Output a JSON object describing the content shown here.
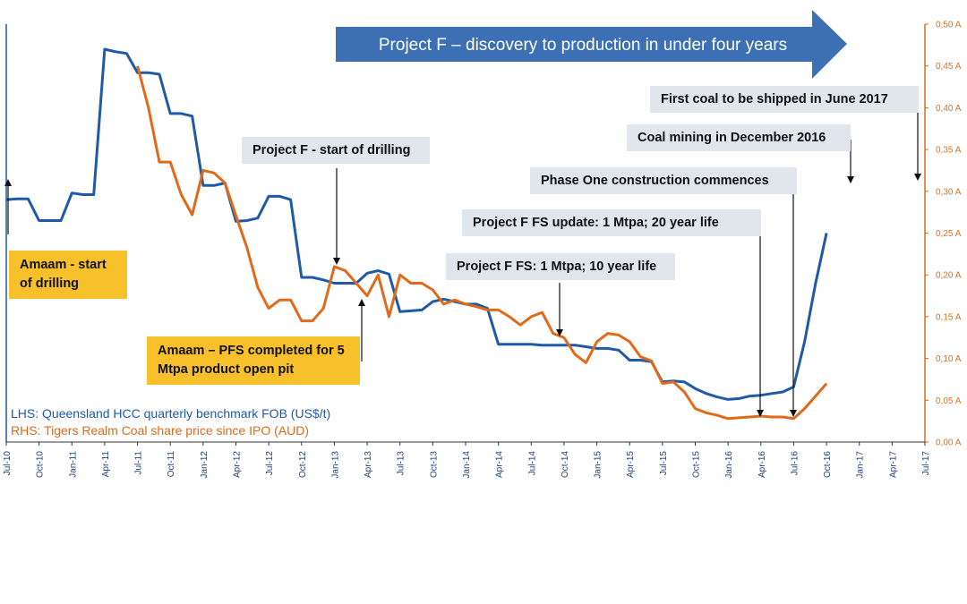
{
  "banner": {
    "text": "Project F – discovery to production in under four years"
  },
  "annotations": {
    "first_coal": "First coal to be shipped in June 2017",
    "coal_mining": "Coal mining in December 2016",
    "phase_one": "Phase One construction commences",
    "fs_update": "Project F FS update: 1 Mtpa; 20 year life",
    "fs": "Project F FS: 1 Mtpa; 10 year life",
    "start_drilling_f": "Project F - start of drilling",
    "amaam_drilling": "Amaam -  start of drilling",
    "amaam_pfs": "Amaam – PFS completed for 5 Mtpa product open pit"
  },
  "legend": {
    "lhs": "LHS: Queensland HCC quarterly benchmark FOB (US$/t)",
    "rhs": "RHS: Tigers Realm Coal share price since IPO (AUD)"
  },
  "colors": {
    "lhs": "#1f5aa6",
    "rhs": "#e06a1a",
    "banner": "#3d6fb4",
    "grey_box": "#e1e6ec",
    "yellow_box": "#f8c02a"
  },
  "chart_data": {
    "type": "line",
    "x_tick_labels": [
      "Jul-10",
      "Oct-10",
      "Jan-11",
      "Apr-11",
      "Jul-11",
      "Oct-11",
      "Jan-12",
      "Apr-12",
      "Jul-12",
      "Oct-12",
      "Jan-13",
      "Apr-13",
      "Jul-13",
      "Oct-13",
      "Jan-14",
      "Apr-14",
      "Jul-14",
      "Oct-14",
      "Jan-15",
      "Apr-15",
      "Jul-15",
      "Oct-15",
      "Jan-16",
      "Apr-16",
      "Jul-16",
      "Oct-16",
      "Jan-17",
      "Apr-17",
      "Jul-17"
    ],
    "y_right_tick_labels": [
      "0,00 A",
      "0,05 A",
      "0,10 A",
      "0,15 A",
      "0,20 A",
      "0,25 A",
      "0,30 A",
      "0,35 A",
      "0,40 A",
      "0,45 A",
      "0,50 A"
    ],
    "y_right_range": [
      0,
      0.5
    ],
    "series": [
      {
        "name": "LHS: Queensland HCC quarterly benchmark FOB (US$/t)",
        "axis": "left",
        "points": [
          [
            "Jul-10",
            0.29
          ],
          [
            "Aug-10",
            0.291
          ],
          [
            "Sep-10",
            0.291
          ],
          [
            "Oct-10",
            0.265
          ],
          [
            "Nov-10",
            0.265
          ],
          [
            "Dec-10",
            0.265
          ],
          [
            "Jan-11",
            0.298
          ],
          [
            "Feb-11",
            0.296
          ],
          [
            "Mar-11",
            0.296
          ],
          [
            "Apr-11",
            0.47
          ],
          [
            "May-11",
            0.467
          ],
          [
            "Jun-11",
            0.465
          ],
          [
            "Jul-11",
            0.442
          ],
          [
            "Aug-11",
            0.442
          ],
          [
            "Sep-11",
            0.44
          ],
          [
            "Oct-11",
            0.393
          ],
          [
            "Nov-11",
            0.393
          ],
          [
            "Dec-11",
            0.39
          ],
          [
            "Jan-12",
            0.307
          ],
          [
            "Feb-12",
            0.307
          ],
          [
            "Mar-12",
            0.31
          ],
          [
            "Apr-12",
            0.264
          ],
          [
            "May-12",
            0.265
          ],
          [
            "Jun-12",
            0.268
          ],
          [
            "Jul-12",
            0.294
          ],
          [
            "Aug-12",
            0.294
          ],
          [
            "Sep-12",
            0.29
          ],
          [
            "Oct-12",
            0.197
          ],
          [
            "Nov-12",
            0.197
          ],
          [
            "Dec-12",
            0.194
          ],
          [
            "Jan-13",
            0.19
          ],
          [
            "Feb-13",
            0.19
          ],
          [
            "Mar-13",
            0.19
          ],
          [
            "Apr-13",
            0.202
          ],
          [
            "May-13",
            0.205
          ],
          [
            "Jun-13",
            0.201
          ],
          [
            "Jul-13",
            0.156
          ],
          [
            "Aug-13",
            0.157
          ],
          [
            "Sep-13",
            0.158
          ],
          [
            "Oct-13",
            0.168
          ],
          [
            "Nov-13",
            0.171
          ],
          [
            "Dec-13",
            0.168
          ],
          [
            "Jan-14",
            0.165
          ],
          [
            "Feb-14",
            0.165
          ],
          [
            "Mar-14",
            0.16
          ],
          [
            "Apr-14",
            0.117
          ],
          [
            "May-14",
            0.117
          ],
          [
            "Jun-14",
            0.117
          ],
          [
            "Jul-14",
            0.117
          ],
          [
            "Aug-14",
            0.116
          ],
          [
            "Sep-14",
            0.116
          ],
          [
            "Oct-14",
            0.116
          ],
          [
            "Nov-14",
            0.116
          ],
          [
            "Dec-14",
            0.114
          ],
          [
            "Jan-15",
            0.112
          ],
          [
            "Feb-15",
            0.112
          ],
          [
            "Mar-15",
            0.11
          ],
          [
            "Apr-15",
            0.098
          ],
          [
            "May-15",
            0.098
          ],
          [
            "Jun-15",
            0.096
          ],
          [
            "Jul-15",
            0.072
          ],
          [
            "Aug-15",
            0.073
          ],
          [
            "Sep-15",
            0.072
          ],
          [
            "Oct-15",
            0.064
          ],
          [
            "Nov-15",
            0.058
          ],
          [
            "Dec-15",
            0.054
          ],
          [
            "Jan-16",
            0.051
          ],
          [
            "Feb-16",
            0.052
          ],
          [
            "Mar-16",
            0.055
          ],
          [
            "Apr-16",
            0.056
          ],
          [
            "May-16",
            0.058
          ],
          [
            "Jun-16",
            0.06
          ],
          [
            "Jul-16",
            0.066
          ],
          [
            "Aug-16",
            0.12
          ],
          [
            "Sep-16",
            0.19
          ],
          [
            "Oct-16",
            0.25
          ]
        ]
      },
      {
        "name": "RHS: Tigers Realm Coal share price since IPO (AUD)",
        "axis": "right",
        "points": [
          [
            "Jul-11",
            0.45
          ],
          [
            "Aug-11",
            0.4
          ],
          [
            "Sep-11",
            0.335
          ],
          [
            "Oct-11",
            0.335
          ],
          [
            "Nov-11",
            0.296
          ],
          [
            "Dec-11",
            0.272
          ],
          [
            "Jan-12",
            0.325
          ],
          [
            "Feb-12",
            0.322
          ],
          [
            "Mar-12",
            0.31
          ],
          [
            "Apr-12",
            0.271
          ],
          [
            "May-12",
            0.233
          ],
          [
            "Jun-12",
            0.185
          ],
          [
            "Jul-12",
            0.16
          ],
          [
            "Aug-12",
            0.17
          ],
          [
            "Sep-12",
            0.17
          ],
          [
            "Oct-12",
            0.145
          ],
          [
            "Nov-12",
            0.145
          ],
          [
            "Dec-12",
            0.16
          ],
          [
            "Jan-13",
            0.21
          ],
          [
            "Feb-13",
            0.205
          ],
          [
            "Mar-13",
            0.19
          ],
          [
            "Apr-13",
            0.175
          ],
          [
            "May-13",
            0.2
          ],
          [
            "Jun-13",
            0.15
          ],
          [
            "Jul-13",
            0.2
          ],
          [
            "Aug-13",
            0.19
          ],
          [
            "Sep-13",
            0.19
          ],
          [
            "Oct-13",
            0.182
          ],
          [
            "Nov-13",
            0.165
          ],
          [
            "Dec-13",
            0.17
          ],
          [
            "Jan-14",
            0.165
          ],
          [
            "Feb-14",
            0.162
          ],
          [
            "Mar-14",
            0.158
          ],
          [
            "Apr-14",
            0.158
          ],
          [
            "May-14",
            0.15
          ],
          [
            "Jun-14",
            0.14
          ],
          [
            "Jul-14",
            0.15
          ],
          [
            "Aug-14",
            0.155
          ],
          [
            "Sep-14",
            0.13
          ],
          [
            "Oct-14",
            0.125
          ],
          [
            "Nov-14",
            0.105
          ],
          [
            "Dec-14",
            0.095
          ],
          [
            "Jan-15",
            0.12
          ],
          [
            "Feb-15",
            0.13
          ],
          [
            "Mar-15",
            0.128
          ],
          [
            "Apr-15",
            0.12
          ],
          [
            "May-15",
            0.102
          ],
          [
            "Jun-15",
            0.097
          ],
          [
            "Jul-15",
            0.07
          ],
          [
            "Aug-15",
            0.072
          ],
          [
            "Sep-15",
            0.06
          ],
          [
            "Oct-15",
            0.04
          ],
          [
            "Nov-15",
            0.035
          ],
          [
            "Dec-15",
            0.032
          ],
          [
            "Jan-16",
            0.028
          ],
          [
            "Feb-16",
            0.029
          ],
          [
            "Mar-16",
            0.03
          ],
          [
            "Apr-16",
            0.031
          ],
          [
            "May-16",
            0.03
          ],
          [
            "Jun-16",
            0.03
          ],
          [
            "Jul-16",
            0.028
          ],
          [
            "Aug-16",
            0.04
          ],
          [
            "Sep-16",
            0.055
          ],
          [
            "Oct-16",
            0.07
          ]
        ]
      }
    ]
  }
}
